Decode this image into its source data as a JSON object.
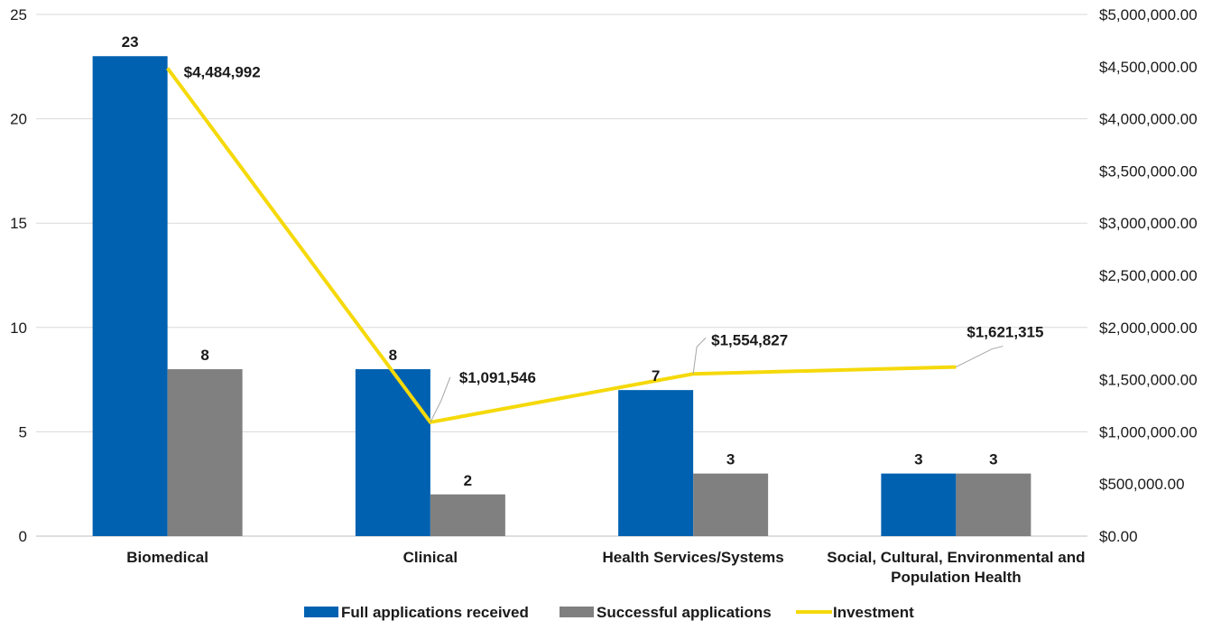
{
  "chart_data": {
    "type": "bar",
    "categories": [
      "Biomedical",
      "Clinical",
      "Health Services/Systems",
      "Social, Cultural, Environmental and Population Health"
    ],
    "category_lines": [
      [
        "Biomedical"
      ],
      [
        "Clinical"
      ],
      [
        "Health Services/Systems"
      ],
      [
        "Social, Cultural, Environmental and",
        "Population Health"
      ]
    ],
    "series": [
      {
        "name": "Full applications received",
        "type": "bar",
        "axis": "left",
        "color": "#0061b0",
        "values": [
          23,
          8,
          7,
          3
        ],
        "labels": [
          "23",
          "8",
          "7",
          "3"
        ]
      },
      {
        "name": "Successful applications",
        "type": "bar",
        "axis": "left",
        "color": "#808080",
        "values": [
          8,
          2,
          3,
          3
        ],
        "labels": [
          "8",
          "2",
          "3",
          "3"
        ]
      },
      {
        "name": "Investment",
        "type": "line",
        "axis": "right",
        "color": "#f5d90a",
        "values": [
          4484992,
          1091546,
          1554827,
          1621315
        ],
        "labels": [
          "$4,484,992",
          "$1,091,546",
          "$1,554,827",
          "$1,621,315"
        ]
      }
    ],
    "ylim_left": [
      0,
      25
    ],
    "yticks_left": [
      "0",
      "5",
      "10",
      "15",
      "20",
      "25"
    ],
    "ylim_right": [
      0,
      5000000
    ],
    "yticks_right": [
      "$0.00",
      "$500,000.00",
      "$1,000,000.00",
      "$1,500,000.00",
      "$2,000,000.00",
      "$2,500,000.00",
      "$3,000,000.00",
      "$3,500,000.00",
      "$4,000,000.00",
      "$4,500,000.00",
      "$5,000,000.00"
    ],
    "grid": true,
    "legend_position": "bottom",
    "gridline_color": "#d9d9d9"
  }
}
